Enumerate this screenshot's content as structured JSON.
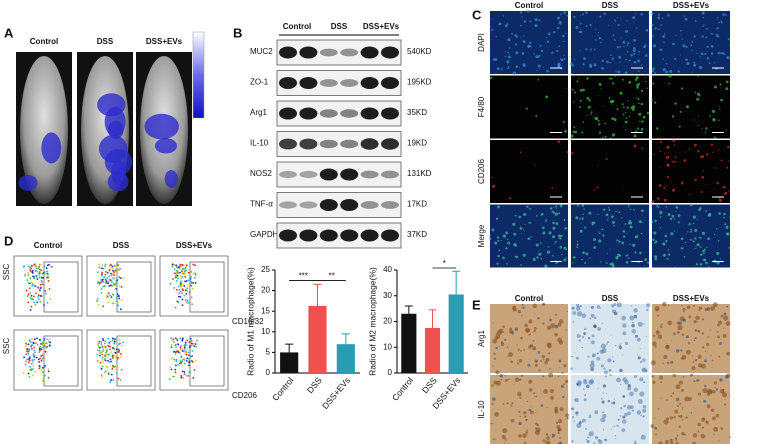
{
  "panel_a": {
    "label": "A",
    "groups": [
      "Control",
      "DSS",
      "DSS+EVs"
    ]
  },
  "panel_b": {
    "label": "B",
    "groups": [
      "Control",
      "DSS",
      "DSS+EVs"
    ],
    "rows": [
      {
        "protein": "MUC2",
        "size": "540KD"
      },
      {
        "protein": "ZO-1",
        "size": "195KD"
      },
      {
        "protein": "Arg1",
        "size": "35KD"
      },
      {
        "protein": "IL-10",
        "size": "19KD"
      },
      {
        "protein": "NOS2",
        "size": "131KD"
      },
      {
        "protein": "TNF-α",
        "size": "17KD"
      },
      {
        "protein": "GAPDH",
        "size": "37KD"
      }
    ]
  },
  "panel_c": {
    "label": "C",
    "groups": [
      "Control",
      "DSS",
      "DSS+EVs"
    ],
    "rows": [
      "DAPI",
      "F4/80",
      "CD206",
      "Merge"
    ]
  },
  "panel_d": {
    "label": "D",
    "groups": [
      "Control",
      "DSS",
      "DSS+EVs"
    ],
    "y_axis": "SSC",
    "x_axes": [
      "CD16/32",
      "CD206"
    ]
  },
  "panel_e": {
    "label": "E",
    "groups": [
      "Control",
      "DSS",
      "DSS+EVs"
    ],
    "rows": [
      "Arg1",
      "IL-10"
    ]
  },
  "chart_data": [
    {
      "type": "bar",
      "y_label": "Radio of M1 macrophage(%)",
      "categories": [
        "Control",
        "DSS",
        "DSS+EVs"
      ],
      "values": [
        5,
        16.3,
        7
      ],
      "errors": [
        2,
        5.2,
        2.5
      ],
      "colors": [
        "#111111",
        "#f0504f",
        "#2a9db5"
      ],
      "ylim": [
        0,
        25
      ],
      "yticks": [
        0,
        5,
        10,
        15,
        20,
        25
      ],
      "annotations": [
        "***",
        "**"
      ]
    },
    {
      "type": "bar",
      "y_label": "Radio of M2 macrophage(%)",
      "categories": [
        "Control",
        "DSS",
        "DSS+EVs"
      ],
      "values": [
        23,
        17.5,
        30.5
      ],
      "errors": [
        3,
        7,
        9
      ],
      "colors": [
        "#111111",
        "#f0504f",
        "#2a9db5"
      ],
      "ylim": [
        0,
        40
      ],
      "yticks": [
        0,
        10,
        20,
        30,
        40
      ],
      "annotations": [
        "*"
      ]
    }
  ]
}
